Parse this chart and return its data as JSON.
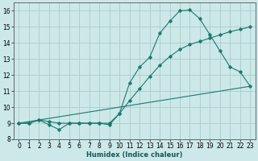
{
  "xlabel": "Humidex (Indice chaleur)",
  "bg_color": "#cce8e8",
  "grid_color": "#aacccc",
  "line_color": "#1a7a6e",
  "xlim": [
    -0.5,
    23.5
  ],
  "ylim": [
    8.0,
    16.5
  ],
  "xticks": [
    0,
    1,
    2,
    3,
    4,
    5,
    6,
    7,
    8,
    9,
    10,
    11,
    12,
    13,
    14,
    15,
    16,
    17,
    18,
    19,
    20,
    21,
    22,
    23
  ],
  "yticks": [
    8,
    9,
    10,
    11,
    12,
    13,
    14,
    15,
    16
  ],
  "line1_x": [
    0,
    1,
    2,
    3,
    4,
    5,
    6,
    7,
    8,
    9,
    10,
    11,
    12,
    13,
    14,
    15,
    16,
    17,
    18,
    19,
    20,
    21,
    22,
    23
  ],
  "line1_y": [
    9.0,
    9.0,
    9.2,
    8.9,
    8.6,
    9.0,
    9.0,
    9.0,
    9.0,
    8.9,
    9.6,
    11.5,
    12.5,
    13.1,
    14.6,
    15.35,
    16.0,
    16.05,
    15.5,
    14.5,
    13.5,
    12.5,
    12.2,
    11.3
  ],
  "line2_x": [
    0,
    1,
    2,
    3,
    4,
    5,
    6,
    7,
    8,
    9,
    10,
    11,
    12,
    13,
    14,
    15,
    16,
    17,
    18,
    19,
    20,
    21,
    22,
    23
  ],
  "line2_y": [
    9.0,
    9.0,
    9.2,
    9.1,
    9.0,
    9.0,
    9.0,
    9.0,
    9.0,
    9.0,
    9.6,
    10.4,
    11.15,
    11.9,
    12.6,
    13.15,
    13.6,
    13.9,
    14.1,
    14.3,
    14.5,
    14.7,
    14.85,
    15.0
  ],
  "line3_x": [
    0,
    23
  ],
  "line3_y": [
    9.0,
    11.3
  ],
  "tick_fontsize": 5.5,
  "xlabel_fontsize": 6.0
}
